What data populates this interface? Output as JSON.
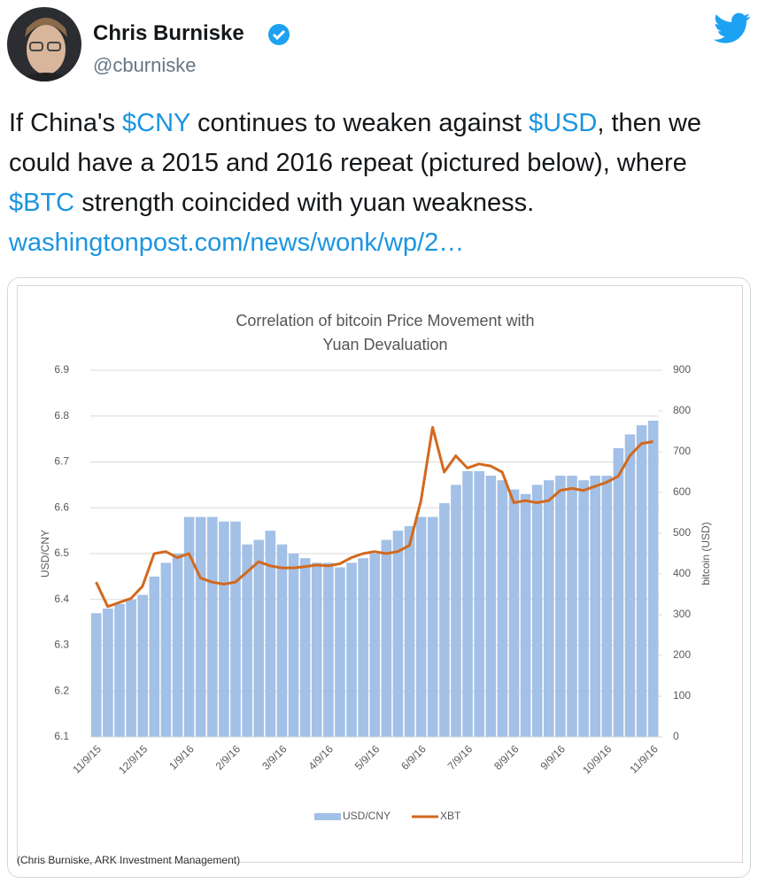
{
  "tweet": {
    "name": "Chris Burniske",
    "handle": "@cburniske",
    "text": [
      "If China's ",
      "$CNY",
      " continues to weaken against ",
      "$USD",
      ", then we could have a 2015 and 2016 repeat (pictured below), where ",
      "$BTC",
      " strength coincided with yuan weakness. ",
      "washingtonpost.com/news/wonk/wp/2…"
    ],
    "caption": "(Chris Burniske, ARK Investment Management)"
  },
  "chart_data": {
    "type": "bar-line",
    "title": "Correlation of bitcoin Price Movement with Yuan Devaluation",
    "y_label": "USD/CNY",
    "y2_label": "bitcoin (USD)",
    "categories": [
      "11/9/15",
      null,
      null,
      null,
      "12/9/15",
      null,
      null,
      null,
      "1/9/16",
      null,
      null,
      null,
      "2/9/16",
      null,
      null,
      null,
      "3/9/16",
      null,
      null,
      null,
      "4/9/16",
      null,
      null,
      null,
      "5/9/16",
      null,
      null,
      null,
      "6/9/16",
      null,
      null,
      null,
      "7/9/16",
      null,
      null,
      null,
      "8/9/16",
      null,
      null,
      null,
      "9/9/16",
      null,
      null,
      null,
      "10/9/16",
      null,
      null,
      null,
      "11/9/16"
    ],
    "series": [
      {
        "name": "USD/CNY",
        "color": "#a3c0e6",
        "kind": "bar",
        "axis": "y",
        "values": [
          6.37,
          6.38,
          6.39,
          6.4,
          6.41,
          6.45,
          6.48,
          6.5,
          6.58,
          6.58,
          6.58,
          6.57,
          6.57,
          6.52,
          6.53,
          6.55,
          6.52,
          6.5,
          6.49,
          6.48,
          6.48,
          6.47,
          6.48,
          6.49,
          6.5,
          6.53,
          6.55,
          6.56,
          6.58,
          6.58,
          6.61,
          6.65,
          6.68,
          6.68,
          6.67,
          6.66,
          6.64,
          6.63,
          6.65,
          6.66,
          6.67,
          6.67,
          6.66,
          6.67,
          6.67,
          6.73,
          6.76,
          6.78,
          6.79
        ]
      },
      {
        "name": "XBT",
        "color": "#d2691e",
        "kind": "line",
        "axis": "y2",
        "values": [
          380,
          320,
          330,
          340,
          370,
          450,
          455,
          440,
          450,
          390,
          380,
          375,
          380,
          405,
          430,
          420,
          415,
          415,
          418,
          422,
          420,
          425,
          440,
          450,
          455,
          450,
          455,
          470,
          580,
          760,
          650,
          690,
          660,
          670,
          665,
          650,
          575,
          580,
          575,
          580,
          605,
          610,
          605,
          615,
          625,
          640,
          690,
          720,
          725
        ]
      }
    ],
    "ylim": [
      6.1,
      6.9
    ],
    "yticks": [
      6.1,
      6.2,
      6.3,
      6.4,
      6.5,
      6.6,
      6.7,
      6.8,
      6.9
    ],
    "y2lim": [
      0,
      900
    ],
    "y2ticks": [
      0,
      100,
      200,
      300,
      400,
      500,
      600,
      700,
      800,
      900
    ],
    "grid": true,
    "legend": "bottom"
  }
}
